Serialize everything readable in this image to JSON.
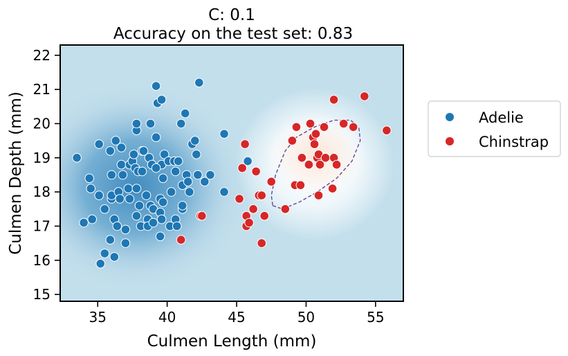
{
  "chart_data": {
    "type": "scatter",
    "title_lines": [
      "C: 0.1",
      "Accuracy on the test set: 0.83"
    ],
    "xlabel": "Culmen Length (mm)",
    "ylabel": "Culmen Depth (mm)",
    "xlim": [
      32.3,
      57.0
    ],
    "ylim": [
      14.8,
      22.3
    ],
    "xticks": [
      35,
      40,
      45,
      50,
      55
    ],
    "yticks": [
      15,
      16,
      17,
      18,
      19,
      20,
      21,
      22
    ],
    "grid": false,
    "legend_position": "outside-right",
    "background": "decision-function heatmap (blue = Adelie, red = Chinstrap) with dashed decision boundary",
    "series": [
      {
        "name": "Adelie",
        "color": "#1f77b4",
        "points": [
          [
            33.5,
            19.0
          ],
          [
            34.0,
            17.1
          ],
          [
            34.4,
            18.4
          ],
          [
            34.5,
            18.1
          ],
          [
            34.6,
            17.2
          ],
          [
            35.1,
            19.4
          ],
          [
            35.1,
            17.9
          ],
          [
            35.2,
            15.9
          ],
          [
            35.5,
            17.5
          ],
          [
            35.5,
            16.2
          ],
          [
            35.9,
            16.6
          ],
          [
            35.9,
            19.2
          ],
          [
            36.0,
            17.8
          ],
          [
            36.0,
            18.5
          ],
          [
            36.0,
            17.9
          ],
          [
            36.2,
            17.2
          ],
          [
            36.2,
            16.1
          ],
          [
            36.3,
            19.5
          ],
          [
            36.4,
            17.0
          ],
          [
            36.5,
            18.0
          ],
          [
            36.6,
            17.8
          ],
          [
            36.7,
            18.8
          ],
          [
            36.7,
            19.3
          ],
          [
            36.8,
            18.5
          ],
          [
            37.0,
            16.9
          ],
          [
            37.0,
            16.5
          ],
          [
            37.2,
            18.1
          ],
          [
            37.3,
            17.8
          ],
          [
            37.3,
            18.8
          ],
          [
            37.5,
            18.9
          ],
          [
            37.6,
            19.1
          ],
          [
            37.7,
            18.7
          ],
          [
            37.8,
            18.1
          ],
          [
            37.8,
            19.8
          ],
          [
            37.8,
            20.0
          ],
          [
            37.8,
            17.3
          ],
          [
            37.9,
            18.6
          ],
          [
            38.0,
            17.6
          ],
          [
            38.1,
            17.0
          ],
          [
            38.2,
            18.6
          ],
          [
            38.2,
            19.2
          ],
          [
            38.3,
            19.2
          ],
          [
            38.5,
            17.9
          ],
          [
            38.6,
            17.2
          ],
          [
            38.6,
            17.0
          ],
          [
            38.7,
            19.0
          ],
          [
            38.8,
            17.6
          ],
          [
            38.8,
            20.0
          ],
          [
            38.9,
            18.8
          ],
          [
            39.0,
            17.1
          ],
          [
            39.0,
            17.5
          ],
          [
            39.2,
            21.1
          ],
          [
            39.2,
            19.6
          ],
          [
            39.3,
            20.6
          ],
          [
            39.5,
            17.4
          ],
          [
            39.5,
            17.8
          ],
          [
            39.6,
            17.2
          ],
          [
            39.6,
            18.8
          ],
          [
            39.6,
            20.7
          ],
          [
            39.7,
            18.4
          ],
          [
            39.7,
            17.7
          ],
          [
            39.8,
            19.1
          ],
          [
            40.1,
            18.9
          ],
          [
            40.2,
            17.0
          ],
          [
            40.3,
            18.0
          ],
          [
            40.5,
            18.9
          ],
          [
            40.6,
            17.2
          ],
          [
            40.6,
            18.6
          ],
          [
            40.7,
            17.0
          ],
          [
            40.8,
            18.9
          ],
          [
            41.0,
            20.0
          ],
          [
            41.1,
            17.5
          ],
          [
            41.1,
            17.6
          ],
          [
            41.1,
            18.2
          ],
          [
            41.3,
            20.3
          ],
          [
            41.4,
            18.5
          ],
          [
            41.5,
            18.3
          ],
          [
            41.8,
            19.4
          ],
          [
            42.0,
            19.5
          ],
          [
            42.1,
            19.1
          ],
          [
            42.2,
            18.5
          ],
          [
            42.3,
            21.2
          ],
          [
            42.7,
            18.3
          ],
          [
            43.1,
            18.5
          ],
          [
            44.1,
            19.7
          ],
          [
            44.1,
            18.0
          ],
          [
            45.8,
            18.9
          ],
          [
            39.5,
            16.7
          ],
          [
            41.6,
            18.0
          ],
          [
            39.2,
            18.7
          ]
        ]
      },
      {
        "name": "Chinstrap",
        "color": "#d62728",
        "points": [
          [
            41.0,
            16.6
          ],
          [
            42.4,
            17.3
          ],
          [
            42.5,
            17.3
          ],
          [
            45.2,
            17.8
          ],
          [
            45.4,
            18.7
          ],
          [
            45.6,
            19.4
          ],
          [
            45.7,
            17.3
          ],
          [
            45.7,
            17.0
          ],
          [
            45.9,
            17.1
          ],
          [
            46.2,
            17.5
          ],
          [
            46.4,
            18.6
          ],
          [
            46.6,
            17.9
          ],
          [
            46.8,
            17.9
          ],
          [
            46.8,
            16.5
          ],
          [
            47.0,
            17.3
          ],
          [
            47.5,
            18.3
          ],
          [
            48.5,
            17.5
          ],
          [
            49.0,
            19.5
          ],
          [
            49.2,
            18.2
          ],
          [
            49.3,
            19.9
          ],
          [
            49.6,
            18.2
          ],
          [
            49.7,
            19.0
          ],
          [
            50.2,
            18.8
          ],
          [
            50.3,
            20.0
          ],
          [
            50.5,
            19.6
          ],
          [
            50.6,
            19.4
          ],
          [
            50.7,
            19.7
          ],
          [
            50.8,
            19.0
          ],
          [
            50.9,
            19.1
          ],
          [
            51.0,
            18.8
          ],
          [
            51.3,
            19.9
          ],
          [
            51.4,
            19.0
          ],
          [
            51.9,
            18.1
          ],
          [
            52.0,
            19.0
          ],
          [
            52.0,
            20.7
          ],
          [
            52.2,
            18.8
          ],
          [
            52.7,
            20.0
          ],
          [
            53.4,
            19.9
          ],
          [
            54.2,
            20.8
          ],
          [
            55.8,
            19.8
          ],
          [
            50.9,
            17.9
          ]
        ]
      }
    ]
  },
  "legend": {
    "items": [
      {
        "label": "Adelie",
        "color": "#1f77b4"
      },
      {
        "label": "Chinstrap",
        "color": "#d62728"
      }
    ]
  }
}
